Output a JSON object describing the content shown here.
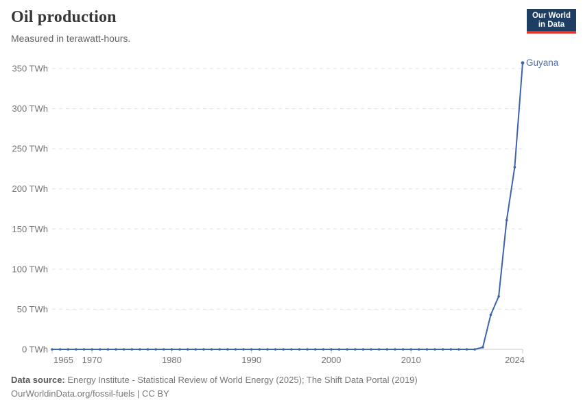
{
  "header": {
    "title": "Oil production",
    "subtitle": "Measured in terawatt-hours.",
    "logo": {
      "line1": "Our World",
      "line2": "in Data",
      "bg_color": "#1d3d63",
      "accent_color": "#e0352c"
    }
  },
  "chart_data": {
    "type": "line",
    "title": "Oil production",
    "subtitle": "Measured in terawatt-hours.",
    "entity": "Guyana",
    "unit": "TWh",
    "x": [
      1965,
      1966,
      1967,
      1968,
      1969,
      1970,
      1971,
      1972,
      1973,
      1974,
      1975,
      1976,
      1977,
      1978,
      1979,
      1980,
      1981,
      1982,
      1983,
      1984,
      1985,
      1986,
      1987,
      1988,
      1989,
      1990,
      1991,
      1992,
      1993,
      1994,
      1995,
      1996,
      1997,
      1998,
      1999,
      2000,
      2001,
      2002,
      2003,
      2004,
      2005,
      2006,
      2007,
      2008,
      2009,
      2010,
      2011,
      2012,
      2013,
      2014,
      2015,
      2016,
      2017,
      2018,
      2019,
      2020,
      2021,
      2022,
      2023,
      2024
    ],
    "values": [
      0,
      0,
      0,
      0,
      0,
      0,
      0,
      0,
      0,
      0,
      0,
      0,
      0,
      0,
      0,
      0,
      0,
      0,
      0,
      0,
      0,
      0,
      0,
      0,
      0,
      0,
      0,
      0,
      0,
      0,
      0,
      0,
      0,
      0,
      0,
      0,
      0,
      0,
      0,
      0,
      0,
      0,
      0,
      0,
      0,
      0,
      0,
      0,
      0,
      0,
      0,
      0,
      0,
      0,
      2.6,
      43,
      66,
      161,
      227,
      357
    ],
    "xlim": [
      1965,
      2024
    ],
    "ylim": [
      0,
      350
    ],
    "yticks": [
      0,
      50,
      100,
      150,
      200,
      250,
      300,
      350
    ],
    "ytick_format": "{v} TWh",
    "xticks": [
      1965,
      1970,
      1980,
      1990,
      2000,
      2010,
      2024
    ],
    "grid": "horizontal-dashed",
    "legend_position": "end-of-line-label",
    "line_color": "#3d64a8",
    "label_color": "#4d6fae",
    "axis_text_color": "#737373",
    "grid_color": "#e0e0e0",
    "axis_line_color": "#c8c8c8"
  },
  "footer": {
    "source_label": "Data source:",
    "source_text": "Energy Institute - Statistical Review of World Energy (2025); The Shift Data Portal (2019)",
    "note_text": "OurWorldinData.org/fossil-fuels | CC BY"
  }
}
